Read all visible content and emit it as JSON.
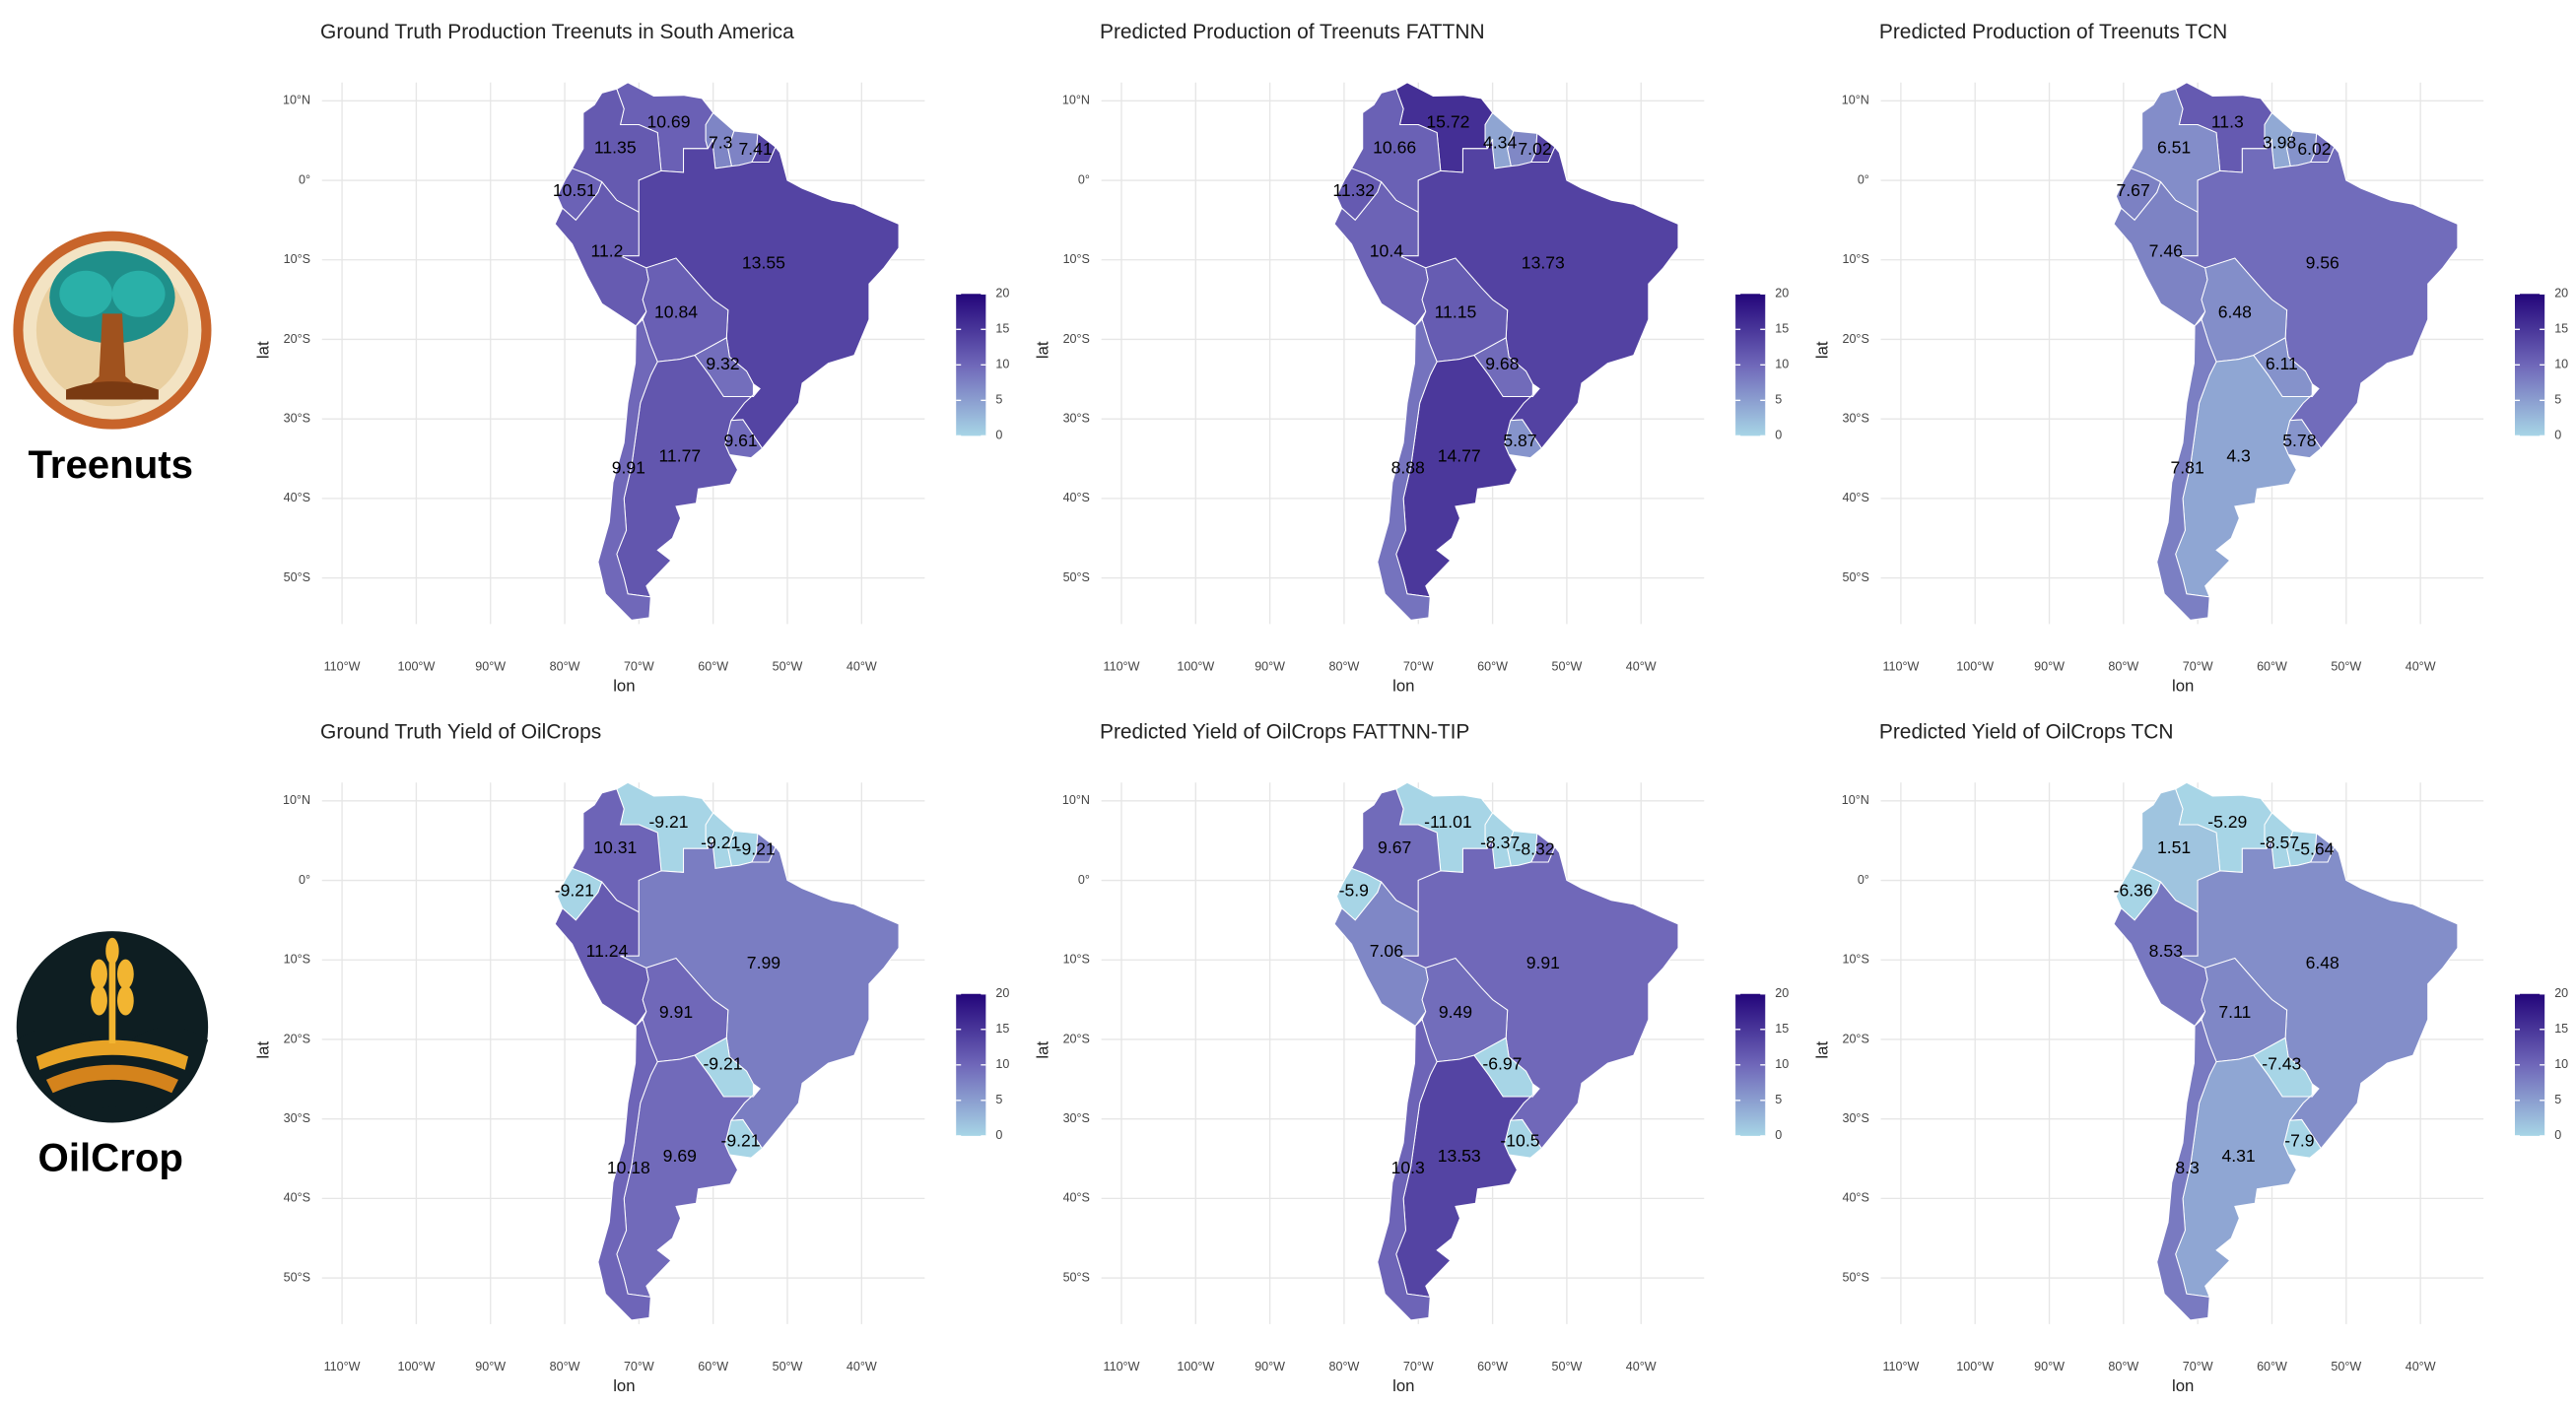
{
  "row_labels": [
    "Treenuts",
    "OilCrop"
  ],
  "axes": {
    "x_label": "lon",
    "y_label": "lat",
    "xlim": [
      -112.7,
      -31.5
    ],
    "ylim": [
      -55.8,
      12.3
    ],
    "xticks": [
      {
        "value": -110,
        "label": "110°W"
      },
      {
        "value": -100,
        "label": "100°W"
      },
      {
        "value": -90,
        "label": "90°W"
      },
      {
        "value": -80,
        "label": "80°W"
      },
      {
        "value": -70,
        "label": "70°W"
      },
      {
        "value": -60,
        "label": "60°W"
      },
      {
        "value": -50,
        "label": "50°W"
      },
      {
        "value": -40,
        "label": "40°W"
      }
    ],
    "yticks": [
      {
        "value": 10,
        "label": "10°N"
      },
      {
        "value": 0,
        "label": "0°"
      },
      {
        "value": -10,
        "label": "10°S"
      },
      {
        "value": -20,
        "label": "20°S"
      },
      {
        "value": -30,
        "label": "30°S"
      },
      {
        "value": -40,
        "label": "40°S"
      },
      {
        "value": -50,
        "label": "50°S"
      }
    ]
  },
  "colorbar": {
    "lim": [
      0,
      20
    ],
    "ticks": [
      0,
      5,
      10,
      15,
      20
    ],
    "colors": [
      "#a7d5e6",
      "#6f67b9",
      "#23057a"
    ]
  },
  "panels": [
    {
      "title": "Ground Truth Production Treenuts in South America",
      "values": [
        10.69,
        7.3,
        7.41,
        11.35,
        10.51,
        11.2,
        13.55,
        10.84,
        9.32,
        9.61,
        11.77,
        9.91
      ]
    },
    {
      "title": "Predicted Production of Treenuts FATTNN",
      "values": [
        15.72,
        4.34,
        7.02,
        10.66,
        11.32,
        10.4,
        13.73,
        11.15,
        9.68,
        5.87,
        14.77,
        8.88
      ]
    },
    {
      "title": "Predicted Production of Treenuts TCN",
      "values": [
        11.3,
        3.98,
        6.02,
        6.51,
        7.67,
        7.46,
        9.56,
        6.48,
        6.11,
        5.78,
        4.3,
        7.81
      ]
    },
    {
      "title": "Ground Truth Yield of OilCrops",
      "values": [
        -9.21,
        -9.21,
        -9.21,
        10.31,
        -9.21,
        11.24,
        7.99,
        9.91,
        -9.21,
        -9.21,
        9.69,
        10.18
      ]
    },
    {
      "title": "Predicted Yield of OilCrops FATTNN-TIP",
      "values": [
        -11.01,
        -8.37,
        -8.32,
        9.67,
        -5.9,
        7.06,
        9.91,
        9.49,
        -6.97,
        -10.5,
        13.53,
        10.3
      ]
    },
    {
      "title": "Predicted Yield of OilCrops TCN",
      "values": [
        -5.29,
        -8.57,
        -5.64,
        1.51,
        -6.36,
        8.53,
        6.48,
        7.11,
        -7.43,
        -7.9,
        4.31,
        8.3
      ]
    }
  ]
}
